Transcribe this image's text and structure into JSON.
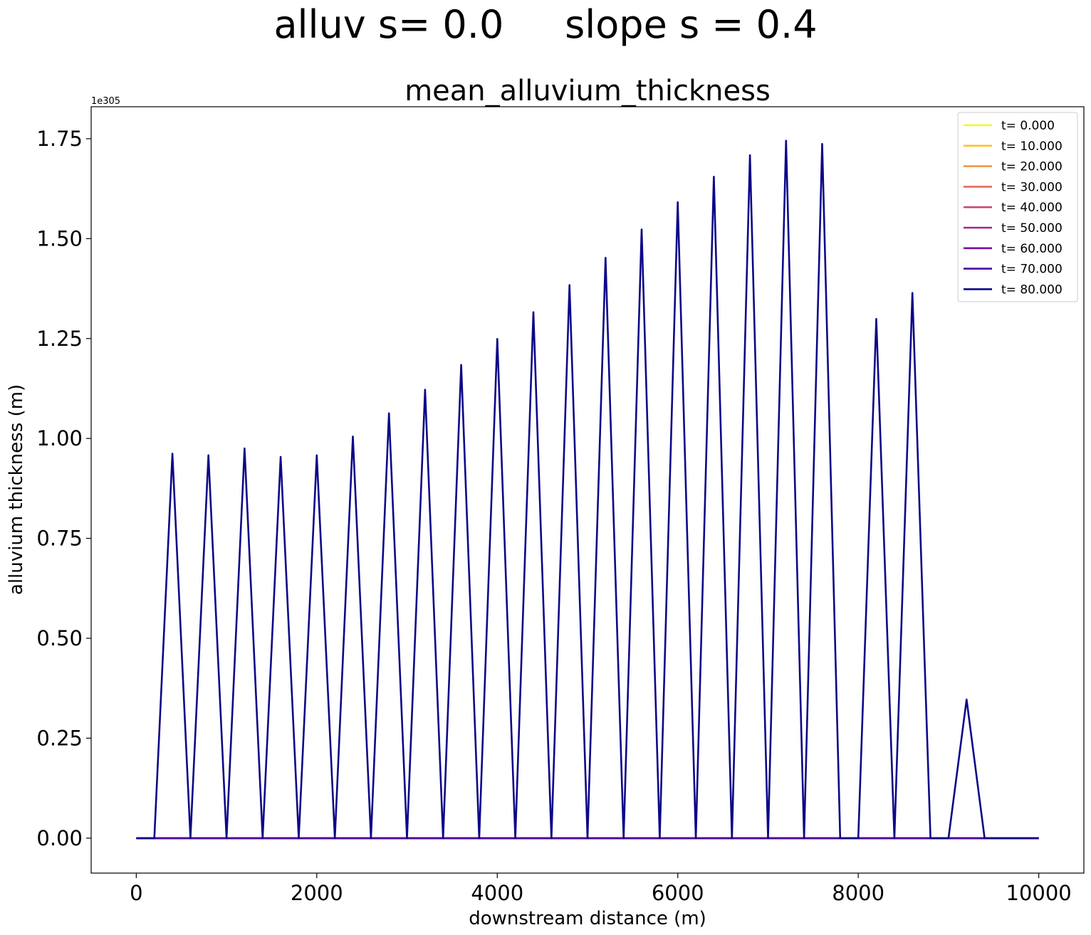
{
  "suptitle": "alluv s= 0.0     slope s = 0.4",
  "chart_data": {
    "type": "line",
    "title": "mean_alluvium_thickness",
    "xlabel": "downstream distance (m)",
    "ylabel": "alluvium thickness (m)",
    "y_offset_label": "1e305",
    "xlim": [
      -500,
      10500
    ],
    "ylim": [
      -0.0875,
      1.83
    ],
    "xticks": [
      0,
      2000,
      4000,
      6000,
      8000,
      10000
    ],
    "xtick_labels": [
      "0",
      "2000",
      "4000",
      "6000",
      "8000",
      "10000"
    ],
    "yticks": [
      0.0,
      0.25,
      0.5,
      0.75,
      1.0,
      1.25,
      1.5,
      1.75
    ],
    "ytick_labels": [
      "0.00",
      "0.25",
      "0.50",
      "0.75",
      "1.00",
      "1.25",
      "1.50",
      "1.75"
    ],
    "grid": false,
    "legend_position": "upper right",
    "x": [
      0,
      200,
      400,
      600,
      800,
      1000,
      1200,
      1400,
      1600,
      1800,
      2000,
      2200,
      2400,
      2600,
      2800,
      3000,
      3200,
      3400,
      3600,
      3800,
      4000,
      4200,
      4400,
      4600,
      4800,
      5000,
      5200,
      5400,
      5600,
      5800,
      6000,
      6200,
      6400,
      6600,
      6800,
      7000,
      7200,
      7400,
      7600,
      7800,
      8000,
      8200,
      8400,
      8600,
      8800,
      9000,
      9200,
      9400,
      9600,
      9800,
      10000
    ],
    "series": [
      {
        "name": "t= 0.000",
        "color": "#f0f921",
        "values": [
          0,
          0,
          0,
          0,
          0,
          0,
          0,
          0,
          0,
          0,
          0,
          0,
          0,
          0,
          0,
          0,
          0,
          0,
          0,
          0,
          0,
          0,
          0,
          0,
          0,
          0,
          0,
          0,
          0,
          0,
          0,
          0,
          0,
          0,
          0,
          0,
          0,
          0,
          0,
          0,
          0,
          0,
          0,
          0,
          0,
          0,
          0,
          0,
          0,
          0,
          0
        ]
      },
      {
        "name": "t= 10.000",
        "color": "#fdc328",
        "values": [
          0,
          0,
          0,
          0,
          0,
          0,
          0,
          0,
          0,
          0,
          0,
          0,
          0,
          0,
          0,
          0,
          0,
          0,
          0,
          0,
          0,
          0,
          0,
          0,
          0,
          0,
          0,
          0,
          0,
          0,
          0,
          0,
          0,
          0,
          0,
          0,
          0,
          0,
          0,
          0,
          0,
          0,
          0,
          0,
          0,
          0,
          0,
          0,
          0,
          0,
          0
        ]
      },
      {
        "name": "t= 20.000",
        "color": "#f89441",
        "values": [
          0,
          0,
          0,
          0,
          0,
          0,
          0,
          0,
          0,
          0,
          0,
          0,
          0,
          0,
          0,
          0,
          0,
          0,
          0,
          0,
          0,
          0,
          0,
          0,
          0,
          0,
          0,
          0,
          0,
          0,
          0,
          0,
          0,
          0,
          0,
          0,
          0,
          0,
          0,
          0,
          0,
          0,
          0,
          0,
          0,
          0,
          0,
          0,
          0,
          0,
          0
        ]
      },
      {
        "name": "t= 30.000",
        "color": "#e56b5d",
        "values": [
          0,
          0,
          0,
          0,
          0,
          0,
          0,
          0,
          0,
          0,
          0,
          0,
          0,
          0,
          0,
          0,
          0,
          0,
          0,
          0,
          0,
          0,
          0,
          0,
          0,
          0,
          0,
          0,
          0,
          0,
          0,
          0,
          0,
          0,
          0,
          0,
          0,
          0,
          0,
          0,
          0,
          0,
          0,
          0,
          0,
          0,
          0,
          0,
          0,
          0,
          0
        ]
      },
      {
        "name": "t= 40.000",
        "color": "#cb4778",
        "values": [
          0,
          0,
          0,
          0,
          0,
          0,
          0,
          0,
          0,
          0,
          0,
          0,
          0,
          0,
          0,
          0,
          0,
          0,
          0,
          0,
          0,
          0,
          0,
          0,
          0,
          0,
          0,
          0,
          0,
          0,
          0,
          0,
          0,
          0,
          0,
          0,
          0,
          0,
          0,
          0,
          0,
          0,
          0,
          0,
          0,
          0,
          0,
          0,
          0,
          0,
          0
        ]
      },
      {
        "name": "t= 50.000",
        "color": "#a82296",
        "values": [
          0,
          0,
          0,
          0,
          0,
          0,
          0,
          0,
          0,
          0,
          0,
          0,
          0,
          0,
          0,
          0,
          0,
          0,
          0,
          0,
          0,
          0,
          0,
          0,
          0,
          0,
          0,
          0,
          0,
          0,
          0,
          0,
          0,
          0,
          0,
          0,
          0,
          0,
          0,
          0,
          0,
          0,
          0,
          0,
          0,
          0,
          0,
          0,
          0,
          0,
          0
        ]
      },
      {
        "name": "t= 60.000",
        "color": "#7e03a8",
        "values": [
          0,
          0,
          0,
          0,
          0,
          0,
          0,
          0,
          0,
          0,
          0,
          0,
          0,
          0,
          0,
          0,
          0,
          0,
          0,
          0,
          0,
          0,
          0,
          0,
          0,
          0,
          0,
          0,
          0,
          0,
          0,
          0,
          0,
          0,
          0,
          0,
          0,
          0,
          0,
          0,
          0,
          0,
          0,
          0,
          0,
          0,
          0,
          0,
          0,
          0,
          0
        ]
      },
      {
        "name": "t= 70.000",
        "color": "#4c02a1",
        "values": [
          0,
          0,
          0,
          0,
          0,
          0,
          0,
          0,
          0,
          0,
          0,
          0,
          0,
          0,
          0,
          0,
          0,
          0,
          0,
          0,
          0,
          0,
          0,
          0,
          0,
          0,
          0,
          0,
          0,
          0,
          0,
          0,
          0,
          0,
          0,
          0,
          0,
          0,
          0,
          0,
          0,
          0,
          0,
          0,
          0,
          0,
          0,
          0,
          0,
          0,
          0
        ]
      },
      {
        "name": "t= 80.000",
        "color": "#0d0887",
        "values": [
          0,
          0,
          0.962,
          0,
          0.958,
          0,
          0.975,
          0,
          0.954,
          0,
          0.958,
          0,
          1.005,
          0,
          1.063,
          0,
          1.122,
          0,
          1.184,
          0,
          1.249,
          0,
          1.316,
          0,
          1.384,
          0,
          1.452,
          0,
          1.523,
          0,
          1.591,
          0,
          1.655,
          0,
          1.709,
          0,
          1.745,
          0,
          1.737,
          0,
          0,
          1.299,
          0,
          1.364,
          0,
          0,
          0.347,
          0,
          0,
          0,
          0
        ]
      }
    ]
  }
}
